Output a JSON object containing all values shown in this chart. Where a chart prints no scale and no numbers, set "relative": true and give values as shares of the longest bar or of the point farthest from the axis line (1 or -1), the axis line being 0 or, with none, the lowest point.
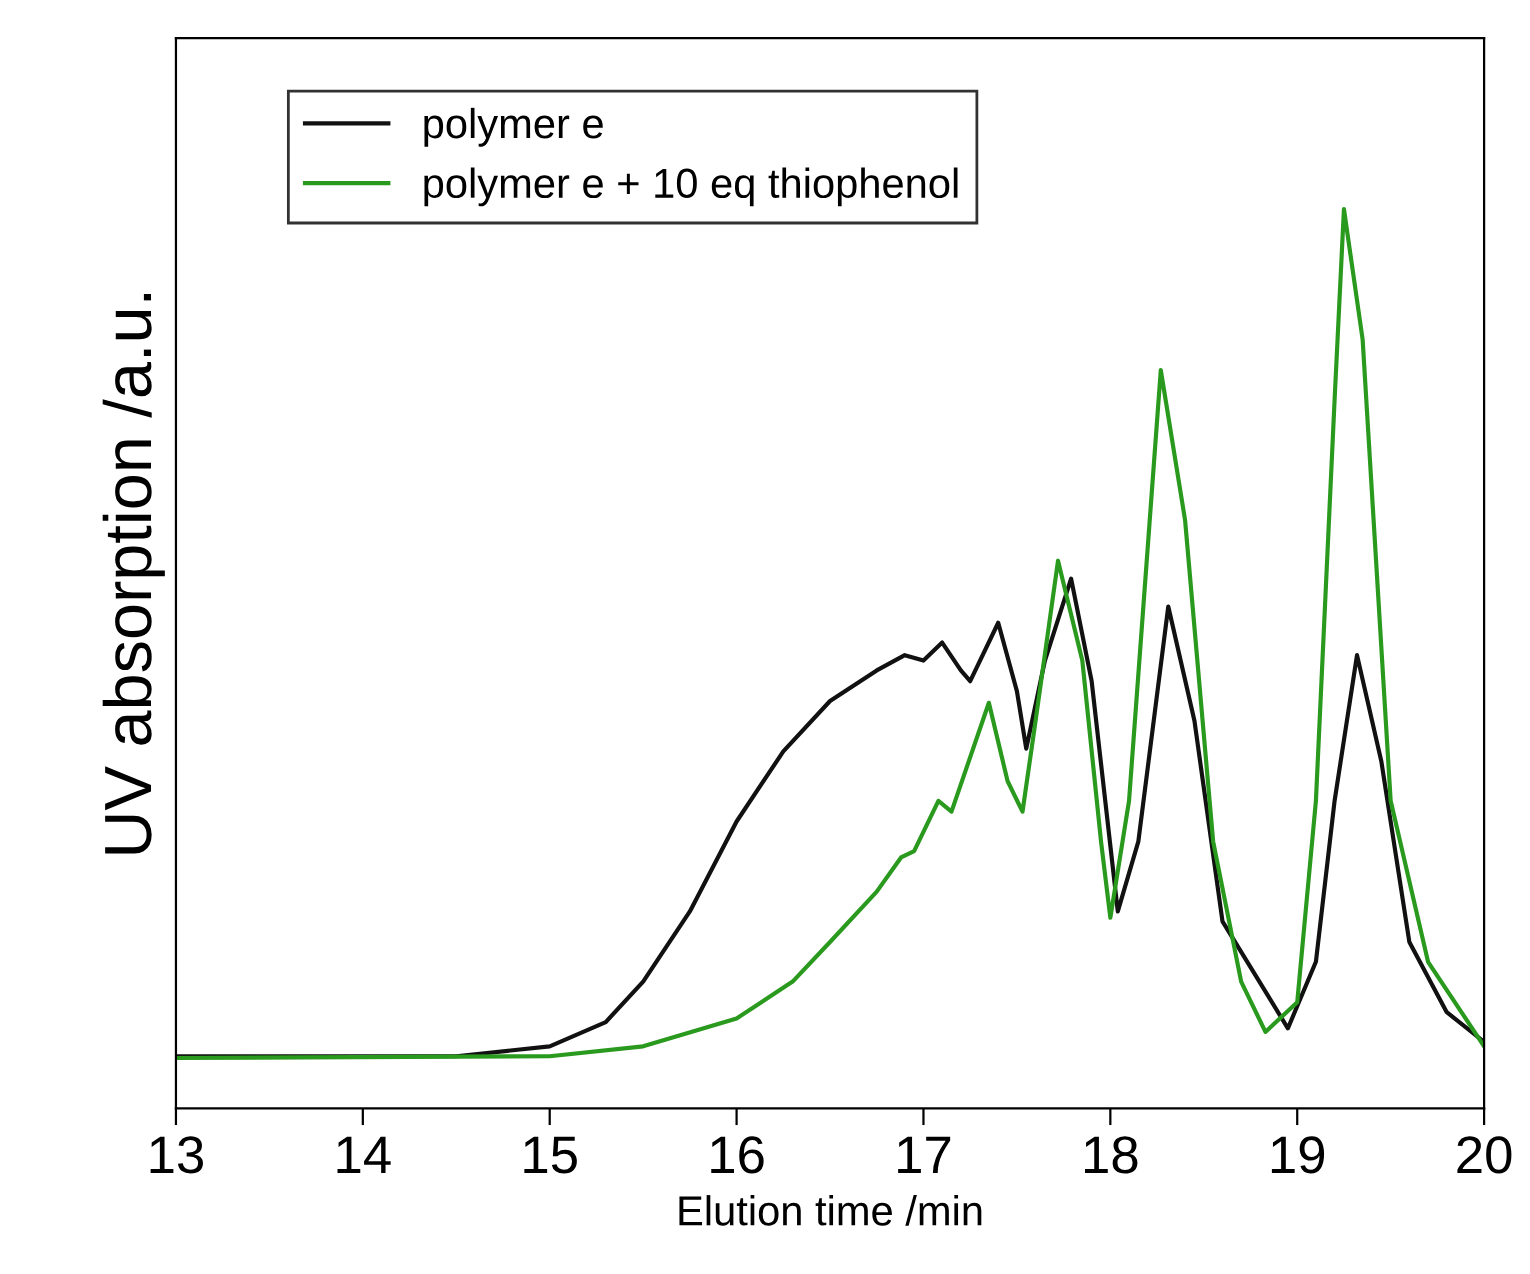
{
  "chart_data": {
    "type": "line",
    "xlabel": "Elution time /min",
    "ylabel": "UV absorption /a.u.",
    "relative": true,
    "tick_labels": "x",
    "legend": "top left",
    "grid": false,
    "xlim": [
      13,
      20
    ],
    "xticks": [
      13,
      14,
      15,
      16,
      17,
      18,
      19,
      20
    ],
    "series": [
      {
        "name": "polymer e",
        "color": "#111111",
        "x": [
          13,
          14.5,
          15,
          15.3,
          15.5,
          15.75,
          16,
          16.25,
          16.5,
          16.75,
          16.9,
          17.0,
          17.1,
          17.2,
          17.25,
          17.4,
          17.5,
          17.55,
          17.65,
          17.79,
          17.9,
          18.04,
          18.15,
          18.31,
          18.45,
          18.6,
          18.95,
          19.1,
          19.2,
          19.32,
          19.45,
          19.6,
          19.8,
          20
        ],
        "values": [
          0.058,
          0.058,
          0.069,
          0.096,
          0.141,
          0.219,
          0.319,
          0.397,
          0.453,
          0.487,
          0.504,
          0.498,
          0.518,
          0.487,
          0.475,
          0.54,
          0.464,
          0.4,
          0.498,
          0.589,
          0.475,
          0.219,
          0.297,
          0.558,
          0.431,
          0.208,
          0.089,
          0.163,
          0.342,
          0.504,
          0.386,
          0.185,
          0.107,
          0.074
        ]
      },
      {
        "name": "polymer e + 10 eq thiophenol",
        "color": "#2a9a1e",
        "x": [
          13,
          15,
          15.5,
          16,
          16.3,
          16.5,
          16.75,
          16.88,
          16.95,
          17.08,
          17.15,
          17.35,
          17.45,
          17.53,
          17.6,
          17.72,
          17.85,
          17.95,
          18.0,
          18.1,
          18.27,
          18.4,
          18.55,
          18.7,
          18.83,
          19.0,
          19.1,
          19.2,
          19.25,
          19.35,
          19.5,
          19.7,
          20
        ],
        "values": [
          0.056,
          0.058,
          0.069,
          0.1,
          0.141,
          0.185,
          0.241,
          0.279,
          0.286,
          0.342,
          0.33,
          0.451,
          0.364,
          0.33,
          0.431,
          0.609,
          0.498,
          0.297,
          0.212,
          0.342,
          0.821,
          0.654,
          0.297,
          0.141,
          0.085,
          0.118,
          0.342,
          0.788,
          1.0,
          0.855,
          0.342,
          0.163,
          0.069
        ]
      }
    ]
  }
}
